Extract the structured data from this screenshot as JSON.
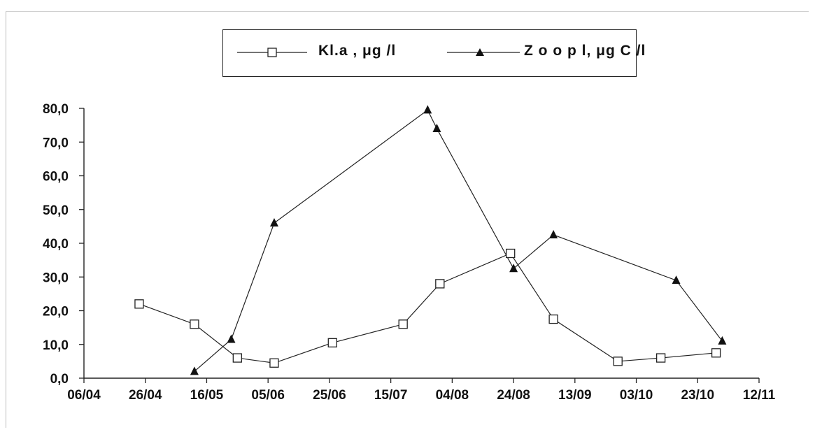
{
  "chart_data": {
    "type": "line",
    "x_ticks": [
      "06/04",
      "26/04",
      "16/05",
      "05/06",
      "25/06",
      "15/07",
      "04/08",
      "24/08",
      "13/09",
      "03/10",
      "23/10",
      "12/11"
    ],
    "y_ticks": [
      "0,0",
      "10,0",
      "20,0",
      "30,0",
      "40,0",
      "50,0",
      "60,0",
      "70,0",
      "80,0"
    ],
    "ylim": [
      0,
      80
    ],
    "xlim": [
      "06/04",
      "12/11"
    ],
    "grid": false,
    "legend_position": "top-center",
    "series": [
      {
        "name": "Kl.a , μg /l",
        "marker": "square-open",
        "color": "#222222",
        "points": [
          {
            "x": "24/04",
            "y": 22.0
          },
          {
            "x": "12/05",
            "y": 16.0
          },
          {
            "x": "26/05",
            "y": 6.0
          },
          {
            "x": "07/06",
            "y": 4.5
          },
          {
            "x": "26/06",
            "y": 10.5
          },
          {
            "x": "19/07",
            "y": 16.0
          },
          {
            "x": "31/07",
            "y": 28.0
          },
          {
            "x": "23/08",
            "y": 37.0
          },
          {
            "x": "06/09",
            "y": 17.5
          },
          {
            "x": "27/09",
            "y": 5.0
          },
          {
            "x": "11/10",
            "y": 6.0
          },
          {
            "x": "29/10",
            "y": 7.5
          }
        ]
      },
      {
        "name": "Z o o p l, μg  C /l",
        "marker": "triangle-filled",
        "color": "#222222",
        "points": [
          {
            "x": "12/05",
            "y": 2.0
          },
          {
            "x": "24/05",
            "y": 11.5
          },
          {
            "x": "07/06",
            "y": 46.0
          },
          {
            "x": "27/07",
            "y": 79.5
          },
          {
            "x": "30/07",
            "y": 74.0
          },
          {
            "x": "24/08",
            "y": 32.5
          },
          {
            "x": "06/09",
            "y": 42.5
          },
          {
            "x": "16/10",
            "y": 29.0
          },
          {
            "x": "31/10",
            "y": 11.0
          }
        ]
      }
    ]
  }
}
